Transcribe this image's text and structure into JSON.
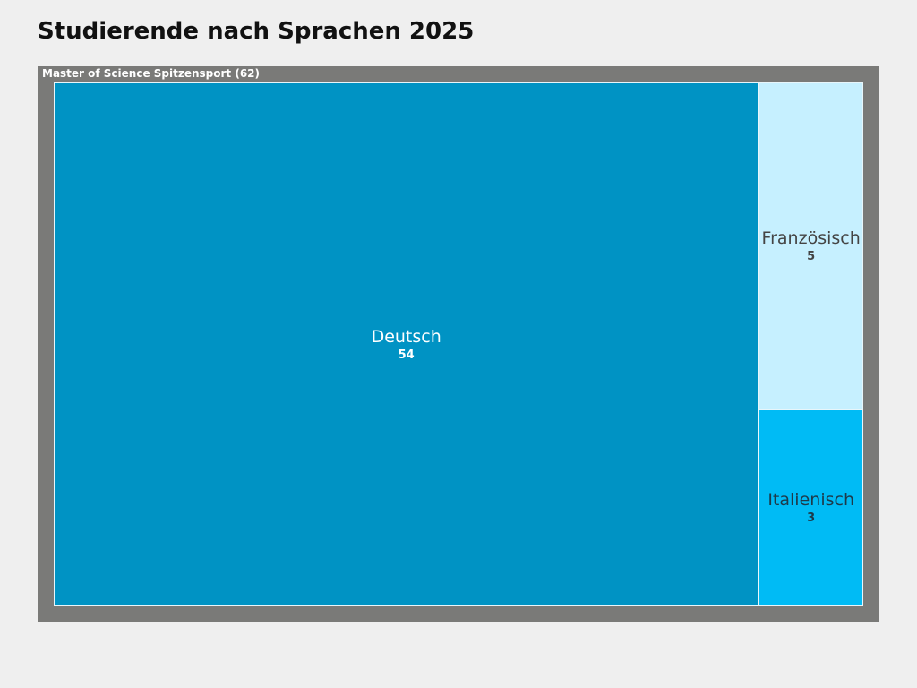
{
  "chart_data": {
    "type": "treemap",
    "title": "Studierende nach Sprachen 2025",
    "parent": {
      "label": "Master of Science Spitzensport (62)",
      "name": "Master of Science Spitzensport",
      "total": 62
    },
    "items": [
      {
        "name": "Deutsch",
        "value": 54,
        "color": "#0093c4",
        "text_color": "#ffffff"
      },
      {
        "name": "Französisch",
        "value": 5,
        "color": "#c6f0ff",
        "text_color": "#444444"
      },
      {
        "name": "Italienisch",
        "value": 3,
        "color": "#00bbf5",
        "text_color": "#1e3a4a"
      }
    ]
  }
}
